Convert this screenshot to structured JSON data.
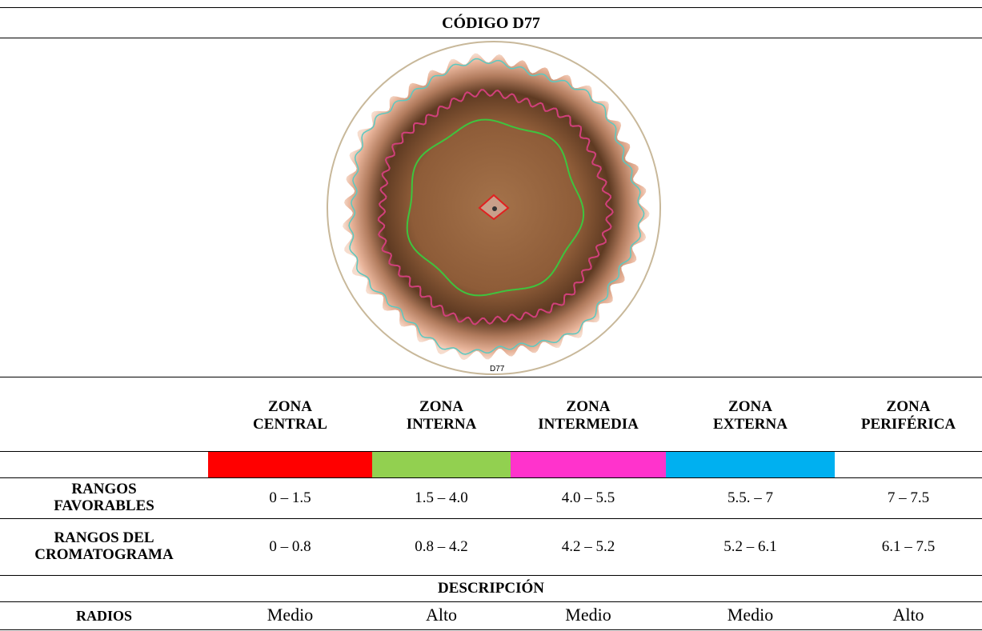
{
  "header": {
    "title": "CÓDIGO D77"
  },
  "image": {
    "label": "D77"
  },
  "zones": [
    {
      "lines": [
        "ZONA",
        "CENTRAL"
      ],
      "color": "#ff0000"
    },
    {
      "lines": [
        "ZONA",
        "INTERNA"
      ],
      "color": "#92d050"
    },
    {
      "lines": [
        "ZONA",
        "INTERMEDIA"
      ],
      "color": "#ff33cc"
    },
    {
      "lines": [
        "ZONA",
        "EXTERNA"
      ],
      "color": "#00b0f0"
    },
    {
      "lines": [
        "ZONA",
        "PERIFÉRICA"
      ],
      "color": null
    }
  ],
  "table": {
    "rows": [
      {
        "label": [
          "RANGOS",
          "FAVORABLES"
        ],
        "cells": [
          "0 – 1.5",
          "1.5 – 4.0",
          "4.0 – 5.5",
          "5.5. – 7",
          "7 – 7.5"
        ]
      },
      {
        "label": [
          "RANGOS DEL",
          "CROMATOGRAMA"
        ],
        "cells": [
          "0 – 0.8",
          "0.8 – 4.2",
          "4.2 – 5.2",
          "5.2 – 6.1",
          "6.1 – 7.5"
        ]
      }
    ]
  },
  "description": {
    "title": "DESCRIPCIÓN",
    "row": {
      "label": "RADIOS",
      "cells": [
        "Medio",
        "Alto",
        "Medio",
        "Medio",
        "Alto"
      ]
    }
  }
}
